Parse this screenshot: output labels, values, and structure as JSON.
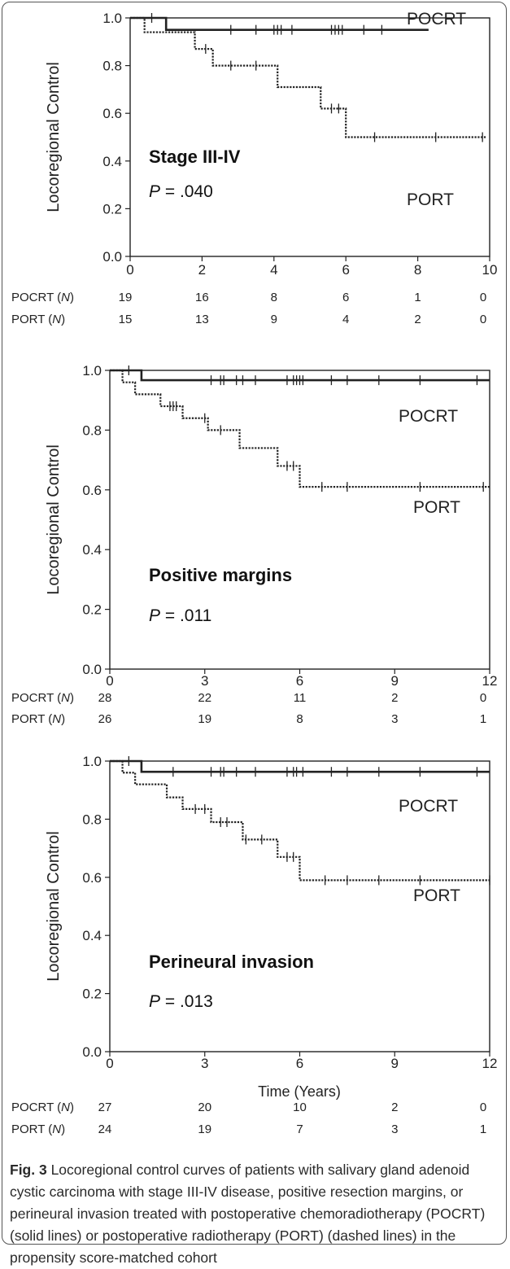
{
  "caption": {
    "label": "Fig. 3",
    "text": "Locoregional control curves of patients with salivary gland adenoid cystic carcinoma with stage III-IV disease, positive resection margins, or perineural invasion treated with postoperative chemoradiotherapy (POCRT) (solid lines) or postoperative radiotherapy (PORT) (dashed lines) in the propensity score-matched cohort"
  },
  "chart_data": [
    {
      "type": "line",
      "title": "Stage III-IV",
      "subtitle_prefix": "P",
      "subtitle_value": " = .040",
      "xlabel": "",
      "ylabel": "Locoregional Control",
      "xlim": [
        0,
        10
      ],
      "ylim": [
        0,
        1.0
      ],
      "xticks": [
        "0",
        "2",
        "4",
        "6",
        "8",
        "10"
      ],
      "yticks": [
        "0.0",
        "0.2",
        "0.4",
        "0.6",
        "0.8",
        "1.0"
      ],
      "series": [
        {
          "name": "POCRT",
          "style": "solid",
          "steps": [
            [
              0,
              1.0
            ],
            [
              1.0,
              0.95
            ],
            [
              8.3,
              0.95
            ]
          ],
          "censors": [
            0.6,
            2.8,
            3.5,
            4.0,
            4.1,
            4.2,
            4.5,
            5.6,
            5.7,
            5.8,
            5.9,
            6.5,
            7.0
          ]
        },
        {
          "name": "PORT",
          "style": "dashed",
          "steps": [
            [
              0,
              1.0
            ],
            [
              0.4,
              0.94
            ],
            [
              1.8,
              0.87
            ],
            [
              2.3,
              0.8
            ],
            [
              4.1,
              0.71
            ],
            [
              5.3,
              0.62
            ],
            [
              6.0,
              0.5
            ],
            [
              9.9,
              0.5
            ]
          ],
          "censors": [
            2.1,
            2.8,
            3.5,
            5.6,
            5.8,
            6.8,
            8.5,
            9.8
          ]
        }
      ],
      "risk_table": {
        "ticks": [
          "0",
          "2",
          "4",
          "6",
          "8",
          "10"
        ],
        "rows": [
          {
            "name": "POCRT",
            "values": [
              "19",
              "16",
              "8",
              "6",
              "1",
              "0"
            ]
          },
          {
            "name": "PORT",
            "values": [
              "15",
              "13",
              "9",
              "4",
              "2",
              "0"
            ]
          }
        ]
      }
    },
    {
      "type": "line",
      "title": "Positive margins",
      "subtitle_prefix": "P",
      "subtitle_value": " = .011",
      "xlabel": "",
      "ylabel": "Locoregional Control",
      "xlim": [
        0,
        12
      ],
      "ylim": [
        0,
        1.0
      ],
      "xticks": [
        "0",
        "3",
        "6",
        "9",
        "12"
      ],
      "yticks": [
        "0.0",
        "0.2",
        "0.4",
        "0.6",
        "0.8",
        "1.0"
      ],
      "series": [
        {
          "name": "POCRT",
          "style": "solid",
          "steps": [
            [
              0,
              1.0
            ],
            [
              1.0,
              0.967
            ],
            [
              12.0,
              0.967
            ]
          ],
          "censors": [
            0.6,
            3.2,
            3.5,
            3.6,
            4.0,
            4.2,
            4.6,
            5.6,
            5.8,
            5.9,
            6.0,
            6.1,
            7.0,
            7.5,
            8.5,
            9.8,
            11.6
          ]
        },
        {
          "name": "PORT",
          "style": "dashed",
          "steps": [
            [
              0,
              1.0
            ],
            [
              0.4,
              0.96
            ],
            [
              0.8,
              0.92
            ],
            [
              1.6,
              0.88
            ],
            [
              2.3,
              0.84
            ],
            [
              3.1,
              0.8
            ],
            [
              4.1,
              0.74
            ],
            [
              5.3,
              0.68
            ],
            [
              6.0,
              0.61
            ],
            [
              12.0,
              0.61
            ]
          ],
          "censors": [
            1.9,
            2.0,
            2.1,
            3.0,
            3.5,
            5.6,
            5.8,
            6.7,
            7.5,
            9.8,
            11.8
          ]
        }
      ],
      "risk_table": {
        "ticks": [
          "0",
          "3",
          "6",
          "9",
          "12"
        ],
        "rows": [
          {
            "name": "POCRT",
            "values": [
              "28",
              "22",
              "11",
              "2",
              "0"
            ]
          },
          {
            "name": "PORT",
            "values": [
              "26",
              "19",
              "8",
              "3",
              "1"
            ]
          }
        ]
      }
    },
    {
      "type": "line",
      "title": "Perineural invasion",
      "subtitle_prefix": "P",
      "subtitle_value": " = .013",
      "xlabel": "Time (Years)",
      "ylabel": "Locoregional Control",
      "xlim": [
        0,
        12
      ],
      "ylim": [
        0,
        1.0
      ],
      "xticks": [
        "0",
        "3",
        "6",
        "9",
        "12"
      ],
      "yticks": [
        "0.0",
        "0.2",
        "0.4",
        "0.6",
        "0.8",
        "1.0"
      ],
      "series": [
        {
          "name": "POCRT",
          "style": "solid",
          "steps": [
            [
              0,
              1.0
            ],
            [
              1.0,
              0.963
            ],
            [
              12.0,
              0.963
            ]
          ],
          "censors": [
            0.6,
            2.0,
            3.2,
            3.5,
            3.6,
            4.0,
            4.6,
            5.6,
            5.8,
            5.9,
            6.1,
            7.0,
            7.5,
            8.5,
            9.8,
            11.6
          ]
        },
        {
          "name": "PORT",
          "style": "dashed",
          "steps": [
            [
              0,
              1.0
            ],
            [
              0.4,
              0.96
            ],
            [
              0.8,
              0.92
            ],
            [
              1.8,
              0.875
            ],
            [
              2.3,
              0.835
            ],
            [
              3.2,
              0.79
            ],
            [
              4.2,
              0.73
            ],
            [
              5.3,
              0.67
            ],
            [
              6.0,
              0.59
            ],
            [
              12.0,
              0.59
            ]
          ],
          "censors": [
            2.7,
            3.0,
            3.5,
            3.7,
            4.3,
            4.8,
            5.6,
            5.8,
            6.8,
            7.5,
            8.5,
            9.8,
            12.0
          ]
        }
      ],
      "risk_table": {
        "ticks": [
          "0",
          "3",
          "6",
          "9",
          "12"
        ],
        "rows": [
          {
            "name": "POCRT",
            "values": [
              "27",
              "20",
              "10",
              "2",
              "0"
            ]
          },
          {
            "name": "PORT",
            "values": [
              "24",
              "19",
              "7",
              "3",
              "1"
            ]
          }
        ]
      }
    }
  ]
}
